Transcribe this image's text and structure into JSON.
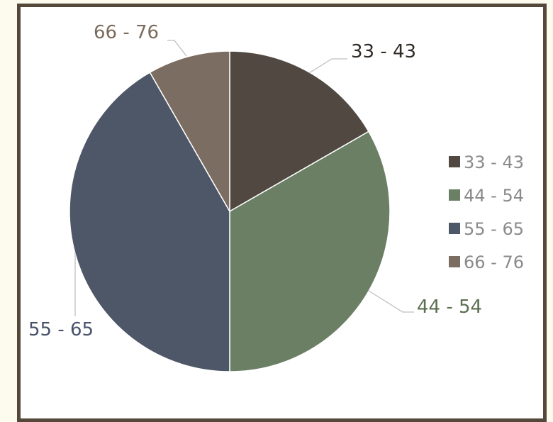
{
  "chart_data": {
    "type": "pie",
    "title": "",
    "categories": [
      "33 - 43",
      "44 - 54",
      "55 - 65",
      "66 - 76"
    ],
    "values": [
      16.7,
      33.3,
      41.7,
      8.3
    ],
    "colors": [
      "#504841",
      "#6b7f65",
      "#4e5767",
      "#7b6d61"
    ],
    "label_colors": [
      "#2f2a26",
      "#5a6e51",
      "#47526a",
      "#7a6a5c"
    ],
    "legend": {
      "position": "right",
      "text_color": "#8a8a8a",
      "entries": [
        "33 - 43",
        "44 - 54",
        "55 - 65",
        "66 - 76"
      ]
    },
    "start_angle_deg": 0,
    "direction": "clockwise",
    "border_color": "#54483a"
  }
}
